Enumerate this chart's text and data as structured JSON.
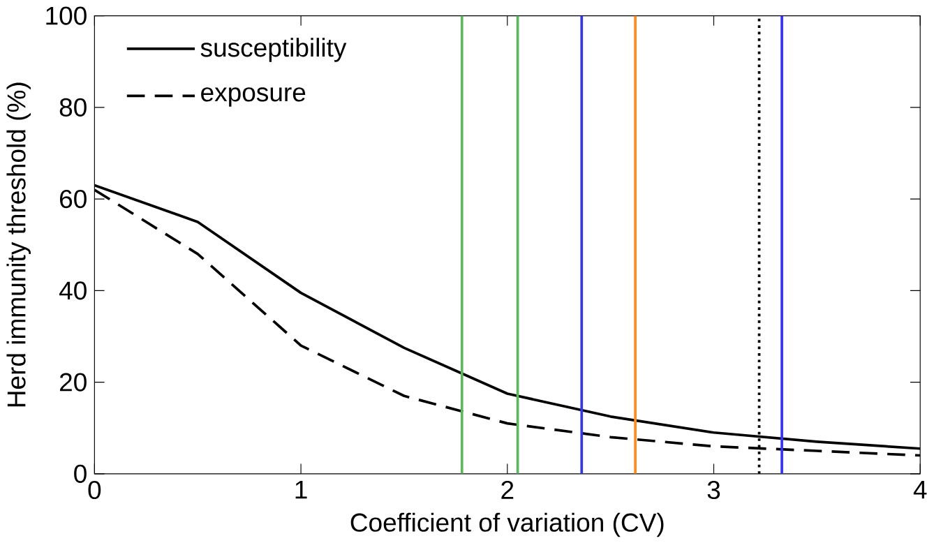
{
  "chart_data": {
    "type": "line",
    "xlabel": "Coefficient of variation (CV)",
    "ylabel": "Herd immunity threshold (%)",
    "x": [
      0,
      0.5,
      1,
      1.5,
      2,
      2.5,
      3,
      3.5,
      4
    ],
    "series": [
      {
        "name": "susceptibility",
        "color": "#000000",
        "line_style": "solid",
        "values": [
          63,
          55,
          39.5,
          27.5,
          17.5,
          12.5,
          9,
          7,
          5.5
        ]
      },
      {
        "name": "exposure",
        "color": "#000000",
        "line_style": "dashed",
        "values": [
          62,
          48,
          28,
          17,
          11,
          8,
          6,
          5,
          4
        ]
      }
    ],
    "xlim": [
      0,
      4
    ],
    "ylim": [
      0,
      100
    ],
    "xticks": [
      0,
      1,
      2,
      3,
      4
    ],
    "yticks": [
      0,
      20,
      40,
      60,
      80,
      100
    ],
    "ref_lines": [
      {
        "axis": "x",
        "value": 1.78,
        "color": "#5cb85c",
        "line_style": "solid"
      },
      {
        "axis": "x",
        "value": 2.05,
        "color": "#5cb85c",
        "line_style": "solid"
      },
      {
        "axis": "x",
        "value": 2.36,
        "color": "#3333ff",
        "line_style": "solid"
      },
      {
        "axis": "x",
        "value": 2.62,
        "color": "#ff8c1a",
        "line_style": "solid"
      },
      {
        "axis": "x",
        "value": 3.22,
        "color": "#000000",
        "line_style": "dotted"
      },
      {
        "axis": "x",
        "value": 3.33,
        "color": "#3333ff",
        "line_style": "solid"
      }
    ],
    "grid": false,
    "legend": "top left"
  }
}
